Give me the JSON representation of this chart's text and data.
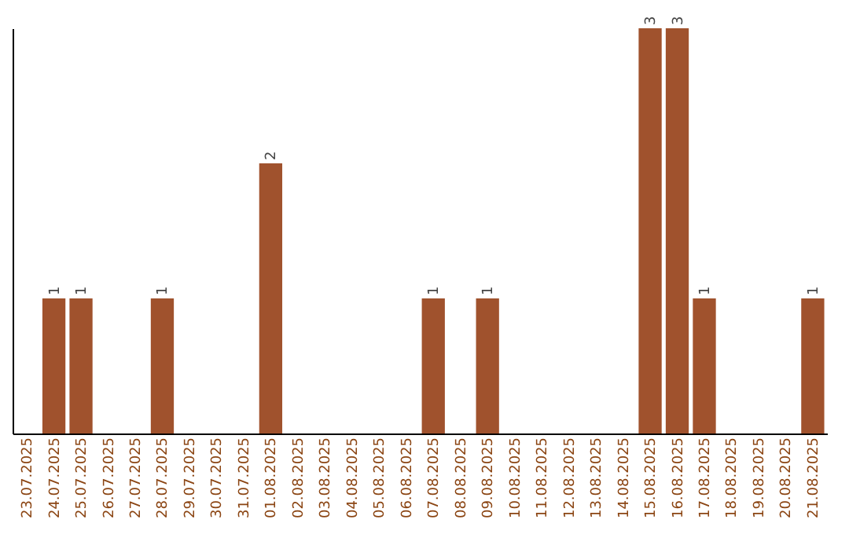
{
  "chart_data": {
    "type": "bar",
    "categories": [
      "23.07.2025",
      "24.07.2025",
      "25.07.2025",
      "26.07.2025",
      "27.07.2025",
      "28.07.2025",
      "29.07.2025",
      "30.07.2025",
      "31.07.2025",
      "01.08.2025",
      "02.08.2025",
      "03.08.2025",
      "04.08.2025",
      "05.08.2025",
      "06.08.2025",
      "07.08.2025",
      "08.08.2025",
      "09.08.2025",
      "10.08.2025",
      "11.08.2025",
      "12.08.2025",
      "13.08.2025",
      "14.08.2025",
      "15.08.2025",
      "16.08.2025",
      "17.08.2025",
      "18.08.2025",
      "19.08.2025",
      "20.08.2025",
      "21.08.2025"
    ],
    "values": [
      0,
      1,
      1,
      0,
      0,
      1,
      0,
      0,
      0,
      2,
      0,
      0,
      0,
      0,
      0,
      1,
      0,
      1,
      0,
      0,
      0,
      0,
      0,
      3,
      3,
      1,
      0,
      0,
      0,
      1
    ],
    "value_labels": [
      null,
      "1",
      "1",
      null,
      null,
      "1",
      null,
      null,
      null,
      "2",
      null,
      null,
      null,
      null,
      null,
      "1",
      null,
      "1",
      null,
      null,
      null,
      null,
      null,
      "3",
      "3",
      "1",
      null,
      null,
      null,
      "1"
    ],
    "color": "#a0522d",
    "tick_labels": "x",
    "grid": false
  }
}
